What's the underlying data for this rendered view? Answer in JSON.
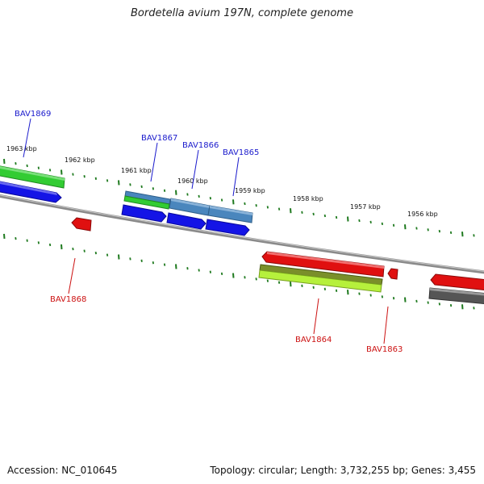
{
  "title": "Bordetella avium 197N, complete genome",
  "footer": {
    "accession": "Accession: NC_010645",
    "summary": "Topology: circular; Length: 3,732,255 bp; Genes: 3,455"
  },
  "colors": {
    "backbone": "#8c8c8c",
    "tick": "#1f7a1f",
    "label_blue": "#1a1acc",
    "label_red": "#cc1111",
    "red": "#e01010",
    "blue": "#1010e0",
    "green": "#33cc33",
    "steelblue": "#4682b4",
    "olive": "#6b8e23",
    "lime": "#aaee33",
    "grey": "#606060"
  },
  "scale_labels": [
    "1963 kbp",
    "1962 kbp",
    "1961 kbp",
    "1960 kbp",
    "1959 kbp",
    "1958 kbp",
    "1957 kbp",
    "1956 kbp"
  ],
  "gene_labels": [
    "BAV1869",
    "BAV1867",
    "BAV1866",
    "BAV1865",
    "BAV1868",
    "BAV1864",
    "BAV1863"
  ]
}
